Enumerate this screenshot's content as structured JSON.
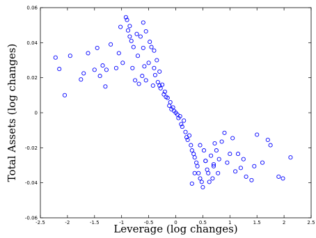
{
  "chart_data": {
    "type": "scatter",
    "title": "",
    "xlabel": "Leverage (log changes)",
    "ylabel": "Total Assets (log changes)",
    "xlim": [
      -2.5,
      2.5
    ],
    "ylim": [
      -0.06,
      0.06
    ],
    "xticks": [
      "-2.5",
      "-2",
      "-1.5",
      "-1",
      "-0.5",
      "0",
      "0.5",
      "1",
      "1.5",
      "2",
      "2.5"
    ],
    "yticks": [
      "-0.06",
      "-0.04",
      "-0.02",
      "0",
      "0.02",
      "0.04",
      "0.06"
    ],
    "grid": false,
    "marker": "circle-open",
    "color": "#0000ff",
    "series": [
      {
        "x": [
          -2.22,
          -2.15,
          -2.05,
          -1.95,
          -1.75,
          -1.7,
          -1.62,
          -1.5,
          -1.45,
          -1.4,
          -1.35,
          -1.3,
          -1.28,
          -1.2,
          -1.1,
          -1.05,
          -1.02,
          -0.98,
          -0.92,
          -0.9,
          -0.88,
          -0.85,
          -0.82,
          -0.8,
          -0.78,
          -0.75,
          -0.72,
          -0.7,
          -0.68,
          -0.65,
          -0.62,
          -0.6,
          -0.58,
          -0.55,
          -0.5,
          -0.48,
          -0.45,
          -0.42,
          -0.4,
          -0.38,
          -0.35,
          -0.33,
          -0.3,
          -0.28,
          -0.25,
          -0.22,
          -0.2,
          -0.18,
          -0.15,
          -0.12,
          -0.1,
          -0.08,
          -0.05,
          -0.03,
          0.0,
          0.03,
          0.05,
          0.08,
          0.1,
          0.12,
          0.15,
          0.18,
          0.2,
          0.22,
          0.25,
          0.28,
          0.3,
          0.33,
          0.35,
          0.38,
          0.4,
          0.42,
          0.45,
          0.48,
          0.5,
          0.52,
          0.55,
          0.58,
          0.6,
          0.62,
          0.65,
          0.68,
          0.7,
          0.72,
          0.75,
          0.78,
          0.8,
          0.85,
          0.9,
          0.95,
          1.0,
          1.05,
          1.1,
          1.15,
          1.2,
          1.25,
          1.3,
          1.4,
          1.45,
          1.5,
          1.6,
          1.7,
          1.75,
          1.9,
          1.98,
          2.12,
          -0.85,
          -0.6,
          -0.4,
          -0.55,
          -0.3,
          0.35,
          0.55,
          0.7,
          0.45,
          0.3
        ],
        "y": [
          0.0315,
          0.025,
          0.01,
          0.0325,
          0.019,
          0.0225,
          0.034,
          0.0245,
          0.037,
          0.021,
          0.027,
          0.015,
          0.0245,
          0.039,
          0.0255,
          0.034,
          0.049,
          0.0285,
          0.0545,
          0.053,
          0.047,
          0.0495,
          0.041,
          0.0255,
          0.0375,
          0.0185,
          0.045,
          0.0325,
          0.0165,
          0.0435,
          0.021,
          0.0515,
          0.0265,
          0.0465,
          0.0285,
          0.0405,
          0.0375,
          0.0155,
          0.0355,
          0.0215,
          0.03,
          0.0175,
          0.0235,
          0.014,
          0.016,
          0.0105,
          0.012,
          0.009,
          0.0085,
          0.004,
          0.006,
          0.002,
          0.003,
          0.001,
          0.0,
          -0.001,
          -0.003,
          -0.002,
          -0.0065,
          -0.008,
          -0.0045,
          -0.011,
          -0.014,
          -0.0155,
          -0.013,
          -0.0185,
          -0.0215,
          -0.0235,
          -0.0255,
          -0.0285,
          -0.0305,
          -0.0345,
          -0.0375,
          -0.0395,
          -0.0425,
          -0.0215,
          -0.0275,
          -0.0325,
          -0.0345,
          -0.0395,
          -0.0245,
          -0.0375,
          -0.0295,
          -0.0175,
          -0.0215,
          -0.0345,
          -0.0265,
          -0.0165,
          -0.0115,
          -0.0285,
          -0.0235,
          -0.0145,
          -0.0335,
          -0.0235,
          -0.0315,
          -0.0265,
          -0.0365,
          -0.0385,
          -0.0305,
          -0.0125,
          -0.0285,
          -0.0155,
          -0.0185,
          -0.0365,
          -0.0375,
          -0.0255,
          0.0435,
          0.037,
          0.0255,
          0.0185,
          0.0155,
          -0.0345,
          -0.0275,
          -0.0305,
          -0.0185,
          -0.0405
        ]
      }
    ]
  }
}
